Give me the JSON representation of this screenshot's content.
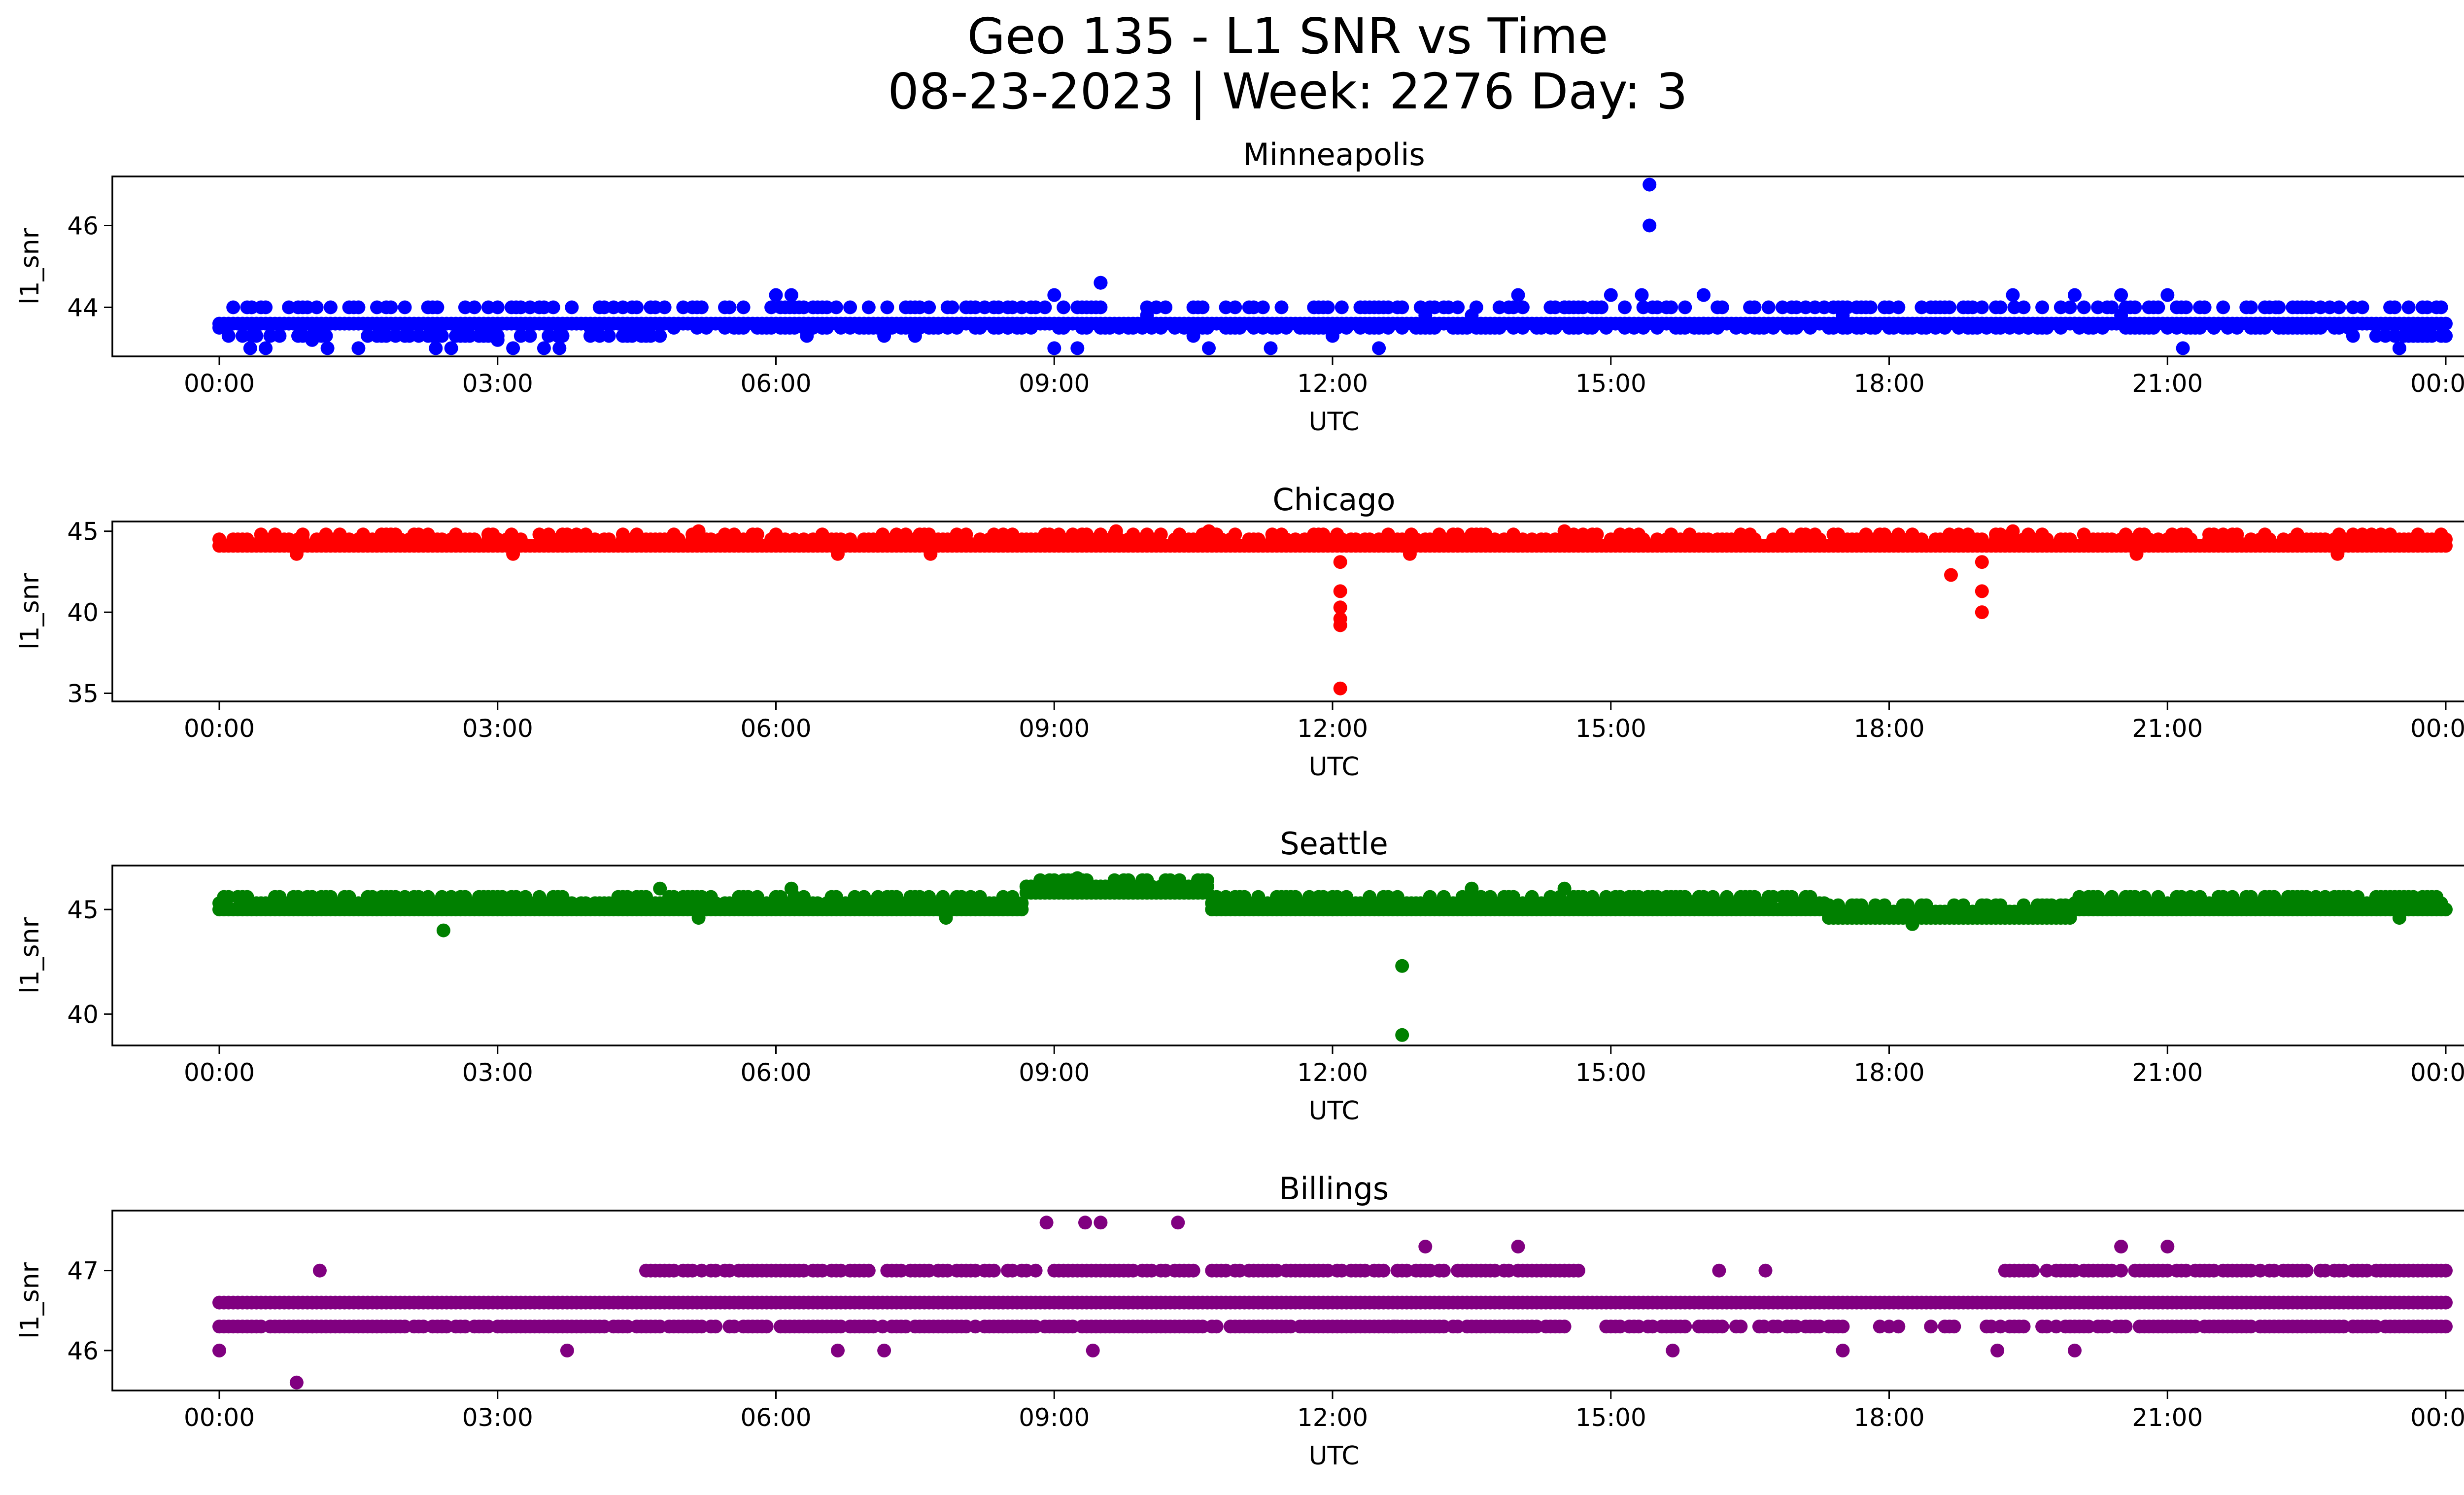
{
  "figure": {
    "title_line1": "Geo 135 - L1 SNR vs Time",
    "title_line2": "08-23-2023 | Week: 2276 Day: 3"
  },
  "chart_data": [
    {
      "type": "scatter",
      "title": "Minneapolis",
      "xlabel": "UTC",
      "ylabel": "l1_snr",
      "color": "#0000ff",
      "xlim": [
        "23:45",
        "24:00+00:25"
      ],
      "ylim": [
        42.8,
        47.2
      ],
      "xticks": [
        "00:00",
        "03:00",
        "06:00",
        "09:00",
        "12:00",
        "15:00",
        "18:00",
        "21:00",
        "00:00"
      ],
      "yticks": [
        44,
        46
      ],
      "grid": false,
      "series": [
        {
          "x": [
            "00:00",
            "00:30",
            "01:00",
            "01:30",
            "02:00",
            "02:30",
            "03:00",
            "03:30",
            "04:00",
            "04:30",
            "05:00",
            "05:30",
            "06:00",
            "06:30",
            "07:00",
            "07:30",
            "08:00",
            "08:30",
            "09:00",
            "09:30",
            "10:00",
            "10:30",
            "11:00",
            "11:30",
            "12:00",
            "12:30",
            "13:00",
            "13:30",
            "14:00",
            "14:30",
            "15:00",
            "15:30",
            "16:00",
            "16:30",
            "17:00",
            "17:30",
            "18:00",
            "18:30",
            "19:00",
            "19:30",
            "20:00",
            "20:30",
            "21:00",
            "21:30",
            "22:00",
            "22:30",
            "23:00",
            "23:30",
            "24:00",
            "15:25",
            "15:25",
            "09:15",
            "09:30",
            "00:20",
            "01:10",
            "02:20",
            "03:10",
            "03:40",
            "06:10",
            "06:20",
            "07:10",
            "09:00",
            "10:40",
            "11:20",
            "12:30",
            "15:20",
            "16:00",
            "17:30",
            "19:20",
            "20:00",
            "20:30",
            "21:10",
            "22:10",
            "23:00",
            "23:30"
          ],
          "y": [
            43.5,
            43.0,
            43.2,
            43.0,
            43.3,
            43.0,
            43.2,
            43.0,
            43.5,
            43.5,
            44.0,
            44.0,
            44.3,
            43.5,
            43.5,
            43.3,
            43.6,
            43.5,
            44.3,
            44.6,
            43.8,
            43.3,
            43.5,
            43.5,
            43.3,
            43.5,
            43.8,
            43.8,
            44.3,
            44.0,
            44.3,
            44.0,
            43.6,
            44.0,
            43.5,
            43.8,
            43.6,
            44.0,
            43.6,
            43.5,
            43.6,
            43.8,
            44.3,
            43.5,
            43.6,
            44.0,
            43.3,
            43.0,
            43.3,
            47.0,
            46.0,
            43.0,
            44.6,
            43.0,
            43.0,
            43.0,
            43.0,
            43.0,
            44.3,
            43.3,
            43.3,
            43.0,
            43.0,
            43.0,
            43.0,
            44.3,
            44.3,
            44.0,
            44.3,
            44.3,
            44.3,
            43.0,
            44.0,
            44.0,
            43.0
          ]
        }
      ]
    },
    {
      "type": "scatter",
      "title": "Chicago",
      "xlabel": "UTC",
      "ylabel": "l1_snr",
      "color": "#ff0000",
      "ylim": [
        34.5,
        45.6
      ],
      "xticks": [
        "00:00",
        "03:00",
        "06:00",
        "09:00",
        "12:00",
        "15:00",
        "18:00",
        "21:00",
        "00:00"
      ],
      "yticks": [
        35,
        40,
        45
      ],
      "grid": false,
      "series": [
        {
          "x": [
            "12:05",
            "12:05",
            "12:05",
            "12:05",
            "12:05",
            "12:05",
            "18:40",
            "19:00",
            "19:00",
            "19:00",
            "05:10",
            "09:40",
            "10:40",
            "12:50",
            "14:30",
            "19:20",
            "00:50",
            "03:10",
            "06:40",
            "07:40",
            "20:40",
            "22:50"
          ],
          "y": [
            35.3,
            39.2,
            39.6,
            40.3,
            41.3,
            43.1,
            42.3,
            43.1,
            41.3,
            40.0,
            45.0,
            45.0,
            45.0,
            43.6,
            45.0,
            45.0,
            43.6,
            43.6,
            43.6,
            43.6,
            43.6,
            43.6
          ]
        }
      ]
    },
    {
      "type": "scatter",
      "title": "Seattle",
      "xlabel": "UTC",
      "ylabel": "l1_snr",
      "color": "#008000",
      "ylim": [
        38.5,
        47.1
      ],
      "xticks": [
        "00:00",
        "03:00",
        "06:00",
        "09:00",
        "12:00",
        "15:00",
        "18:00",
        "21:00",
        "00:00"
      ],
      "yticks": [
        40,
        45
      ],
      "grid": false,
      "series": [
        {
          "x": [
            "02:25",
            "12:45",
            "12:45",
            "09:15",
            "04:45",
            "06:10",
            "13:30",
            "14:30",
            "18:15",
            "23:30",
            "05:10",
            "07:50",
            "12:00",
            "09:40",
            "16:00"
          ],
          "y": [
            44.0,
            42.3,
            39.0,
            46.5,
            46.0,
            46.0,
            46.0,
            46.0,
            44.3,
            44.6,
            44.6,
            44.6,
            45.0,
            46.3,
            45.6
          ]
        }
      ]
    },
    {
      "type": "scatter",
      "title": "Billings",
      "xlabel": "UTC",
      "ylabel": "l1_snr",
      "color": "#800080",
      "ylim": [
        45.5,
        47.75
      ],
      "xticks": [
        "00:00",
        "03:00",
        "06:00",
        "09:00",
        "12:00",
        "15:00",
        "18:00",
        "21:00",
        "00:00"
      ],
      "yticks": [
        46,
        47
      ],
      "grid": false,
      "series": [
        {
          "x": [
            "00:00",
            "00:50",
            "01:05",
            "03:45",
            "08:55",
            "09:20",
            "10:20",
            "12:40",
            "13:00",
            "14:00",
            "15:40",
            "16:10",
            "16:40",
            "20:30",
            "21:00",
            "23:00",
            "09:25",
            "09:30",
            "06:40",
            "07:10",
            "17:30",
            "19:10",
            "20:00",
            "23:30"
          ],
          "y": [
            46.0,
            45.6,
            47.0,
            46.0,
            47.6,
            47.6,
            47.6,
            46.3,
            47.3,
            47.3,
            46.0,
            47.0,
            47.0,
            47.3,
            47.3,
            46.3,
            46.0,
            47.6,
            46.0,
            46.0,
            46.0,
            46.0,
            46.0,
            47.0
          ]
        }
      ]
    }
  ]
}
